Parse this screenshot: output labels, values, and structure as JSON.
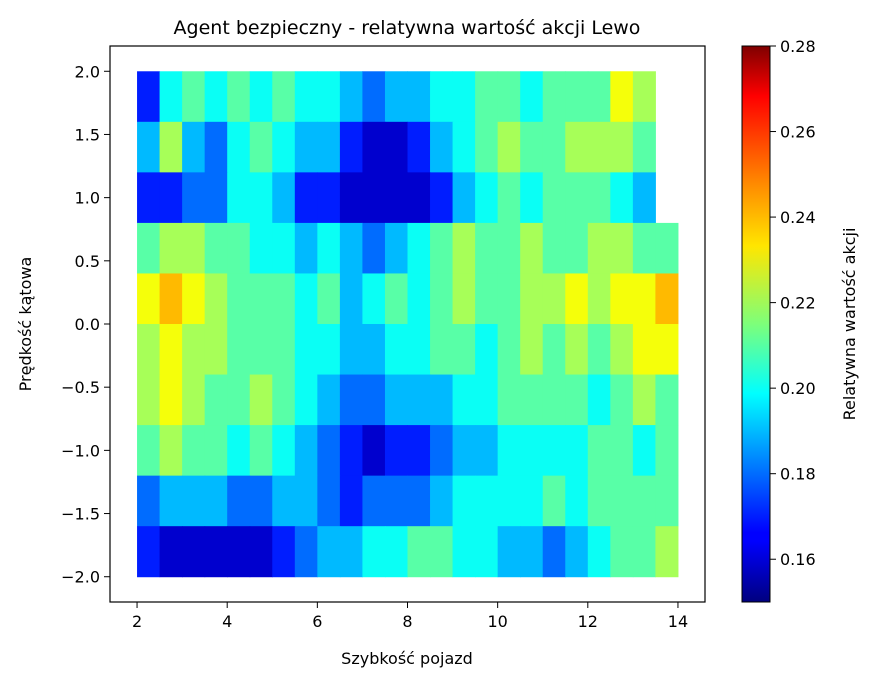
{
  "chart_data": {
    "type": "heatmap",
    "title": "Agent bezpieczny - relatywna wartość akcji Lewo",
    "xlabel": "Szybkość pojazd",
    "ylabel": "Prędkość kątowa",
    "xlim": [
      1.4,
      14.6
    ],
    "ylim": [
      -2.2,
      2.2
    ],
    "x_ticks": [
      2,
      4,
      6,
      8,
      10,
      12,
      14
    ],
    "y_ticks": [
      -2.0,
      -1.5,
      -1.0,
      -0.5,
      0.0,
      0.5,
      1.0,
      1.5,
      2.0
    ],
    "x_tick_labels": [
      "2",
      "4",
      "6",
      "8",
      "10",
      "12",
      "14"
    ],
    "y_tick_labels": [
      "−2.0",
      "−1.5",
      "−1.0",
      "−0.5",
      "0.0",
      "0.5",
      "1.0",
      "1.5",
      "2.0"
    ],
    "colorbar": {
      "label": "Relatywna wartość akcji",
      "colormap": "jet",
      "range": [
        0.15,
        0.28
      ],
      "ticks": [
        0.16,
        0.18,
        0.2,
        0.22,
        0.24,
        0.26,
        0.28
      ],
      "tick_labels": [
        "0.16",
        "0.18",
        "0.20",
        "0.22",
        "0.24",
        "0.26",
        "0.28"
      ]
    },
    "grid": false,
    "x_bins": [
      2.25,
      2.75,
      3.25,
      3.75,
      4.25,
      4.75,
      5.25,
      5.75,
      6.25,
      6.75,
      7.25,
      7.75,
      8.25,
      8.75,
      9.25,
      9.75,
      10.25,
      10.75,
      11.25,
      11.75,
      12.25,
      12.75,
      13.25,
      13.75
    ],
    "y_bins": [
      1.8,
      1.4,
      1.0,
      0.6,
      0.2,
      -0.2,
      -0.6,
      -1.0,
      -1.4,
      -1.8
    ],
    "values": [
      [
        0.17,
        0.2,
        0.21,
        0.2,
        0.21,
        0.2,
        0.21,
        0.2,
        0.2,
        0.19,
        0.18,
        0.19,
        0.19,
        0.2,
        0.2,
        0.21,
        0.21,
        0.2,
        0.21,
        0.21,
        0.21,
        0.23,
        0.22,
        null
      ],
      [
        0.19,
        0.22,
        0.19,
        0.18,
        0.2,
        0.21,
        0.2,
        0.19,
        0.19,
        0.17,
        0.16,
        0.16,
        0.17,
        0.19,
        0.2,
        0.21,
        0.22,
        0.21,
        0.21,
        0.22,
        0.22,
        0.22,
        0.21,
        null
      ],
      [
        0.17,
        0.17,
        0.18,
        0.18,
        0.2,
        0.2,
        0.19,
        0.17,
        0.17,
        0.16,
        0.16,
        0.16,
        0.16,
        0.17,
        0.19,
        0.2,
        0.21,
        0.2,
        0.21,
        0.21,
        0.21,
        0.2,
        0.19,
        null
      ],
      [
        0.21,
        0.22,
        0.22,
        0.21,
        0.21,
        0.2,
        0.2,
        0.19,
        0.2,
        0.19,
        0.18,
        0.19,
        0.2,
        0.21,
        0.22,
        0.21,
        0.21,
        0.22,
        0.21,
        0.21,
        0.22,
        0.22,
        0.21,
        0.21
      ],
      [
        0.23,
        0.24,
        0.23,
        0.22,
        0.21,
        0.21,
        0.21,
        0.2,
        0.21,
        0.19,
        0.2,
        0.21,
        0.2,
        0.21,
        0.22,
        0.21,
        0.21,
        0.22,
        0.22,
        0.23,
        0.22,
        0.23,
        0.23,
        0.24
      ],
      [
        0.22,
        0.23,
        0.22,
        0.22,
        0.21,
        0.21,
        0.21,
        0.2,
        0.2,
        0.19,
        0.19,
        0.2,
        0.2,
        0.21,
        0.21,
        0.2,
        0.21,
        0.22,
        0.21,
        0.22,
        0.21,
        0.22,
        0.23,
        0.23
      ],
      [
        0.22,
        0.23,
        0.22,
        0.21,
        0.21,
        0.22,
        0.21,
        0.2,
        0.19,
        0.18,
        0.18,
        0.19,
        0.19,
        0.19,
        0.2,
        0.2,
        0.21,
        0.21,
        0.21,
        0.21,
        0.2,
        0.21,
        0.22,
        0.21
      ],
      [
        0.21,
        0.22,
        0.21,
        0.21,
        0.2,
        0.21,
        0.2,
        0.19,
        0.18,
        0.17,
        0.16,
        0.17,
        0.17,
        0.18,
        0.19,
        0.19,
        0.2,
        0.2,
        0.2,
        0.2,
        0.21,
        0.21,
        0.2,
        0.21
      ],
      [
        0.18,
        0.19,
        0.19,
        0.19,
        0.18,
        0.18,
        0.19,
        0.19,
        0.18,
        0.17,
        0.18,
        0.18,
        0.18,
        0.19,
        0.2,
        0.2,
        0.2,
        0.2,
        0.21,
        0.2,
        0.21,
        0.21,
        0.21,
        0.21
      ],
      [
        0.17,
        0.16,
        0.16,
        0.16,
        0.16,
        0.16,
        0.17,
        0.18,
        0.19,
        0.19,
        0.2,
        0.2,
        0.21,
        0.21,
        0.2,
        0.2,
        0.19,
        0.19,
        0.18,
        0.19,
        0.2,
        0.21,
        0.21,
        0.22
      ]
    ]
  }
}
